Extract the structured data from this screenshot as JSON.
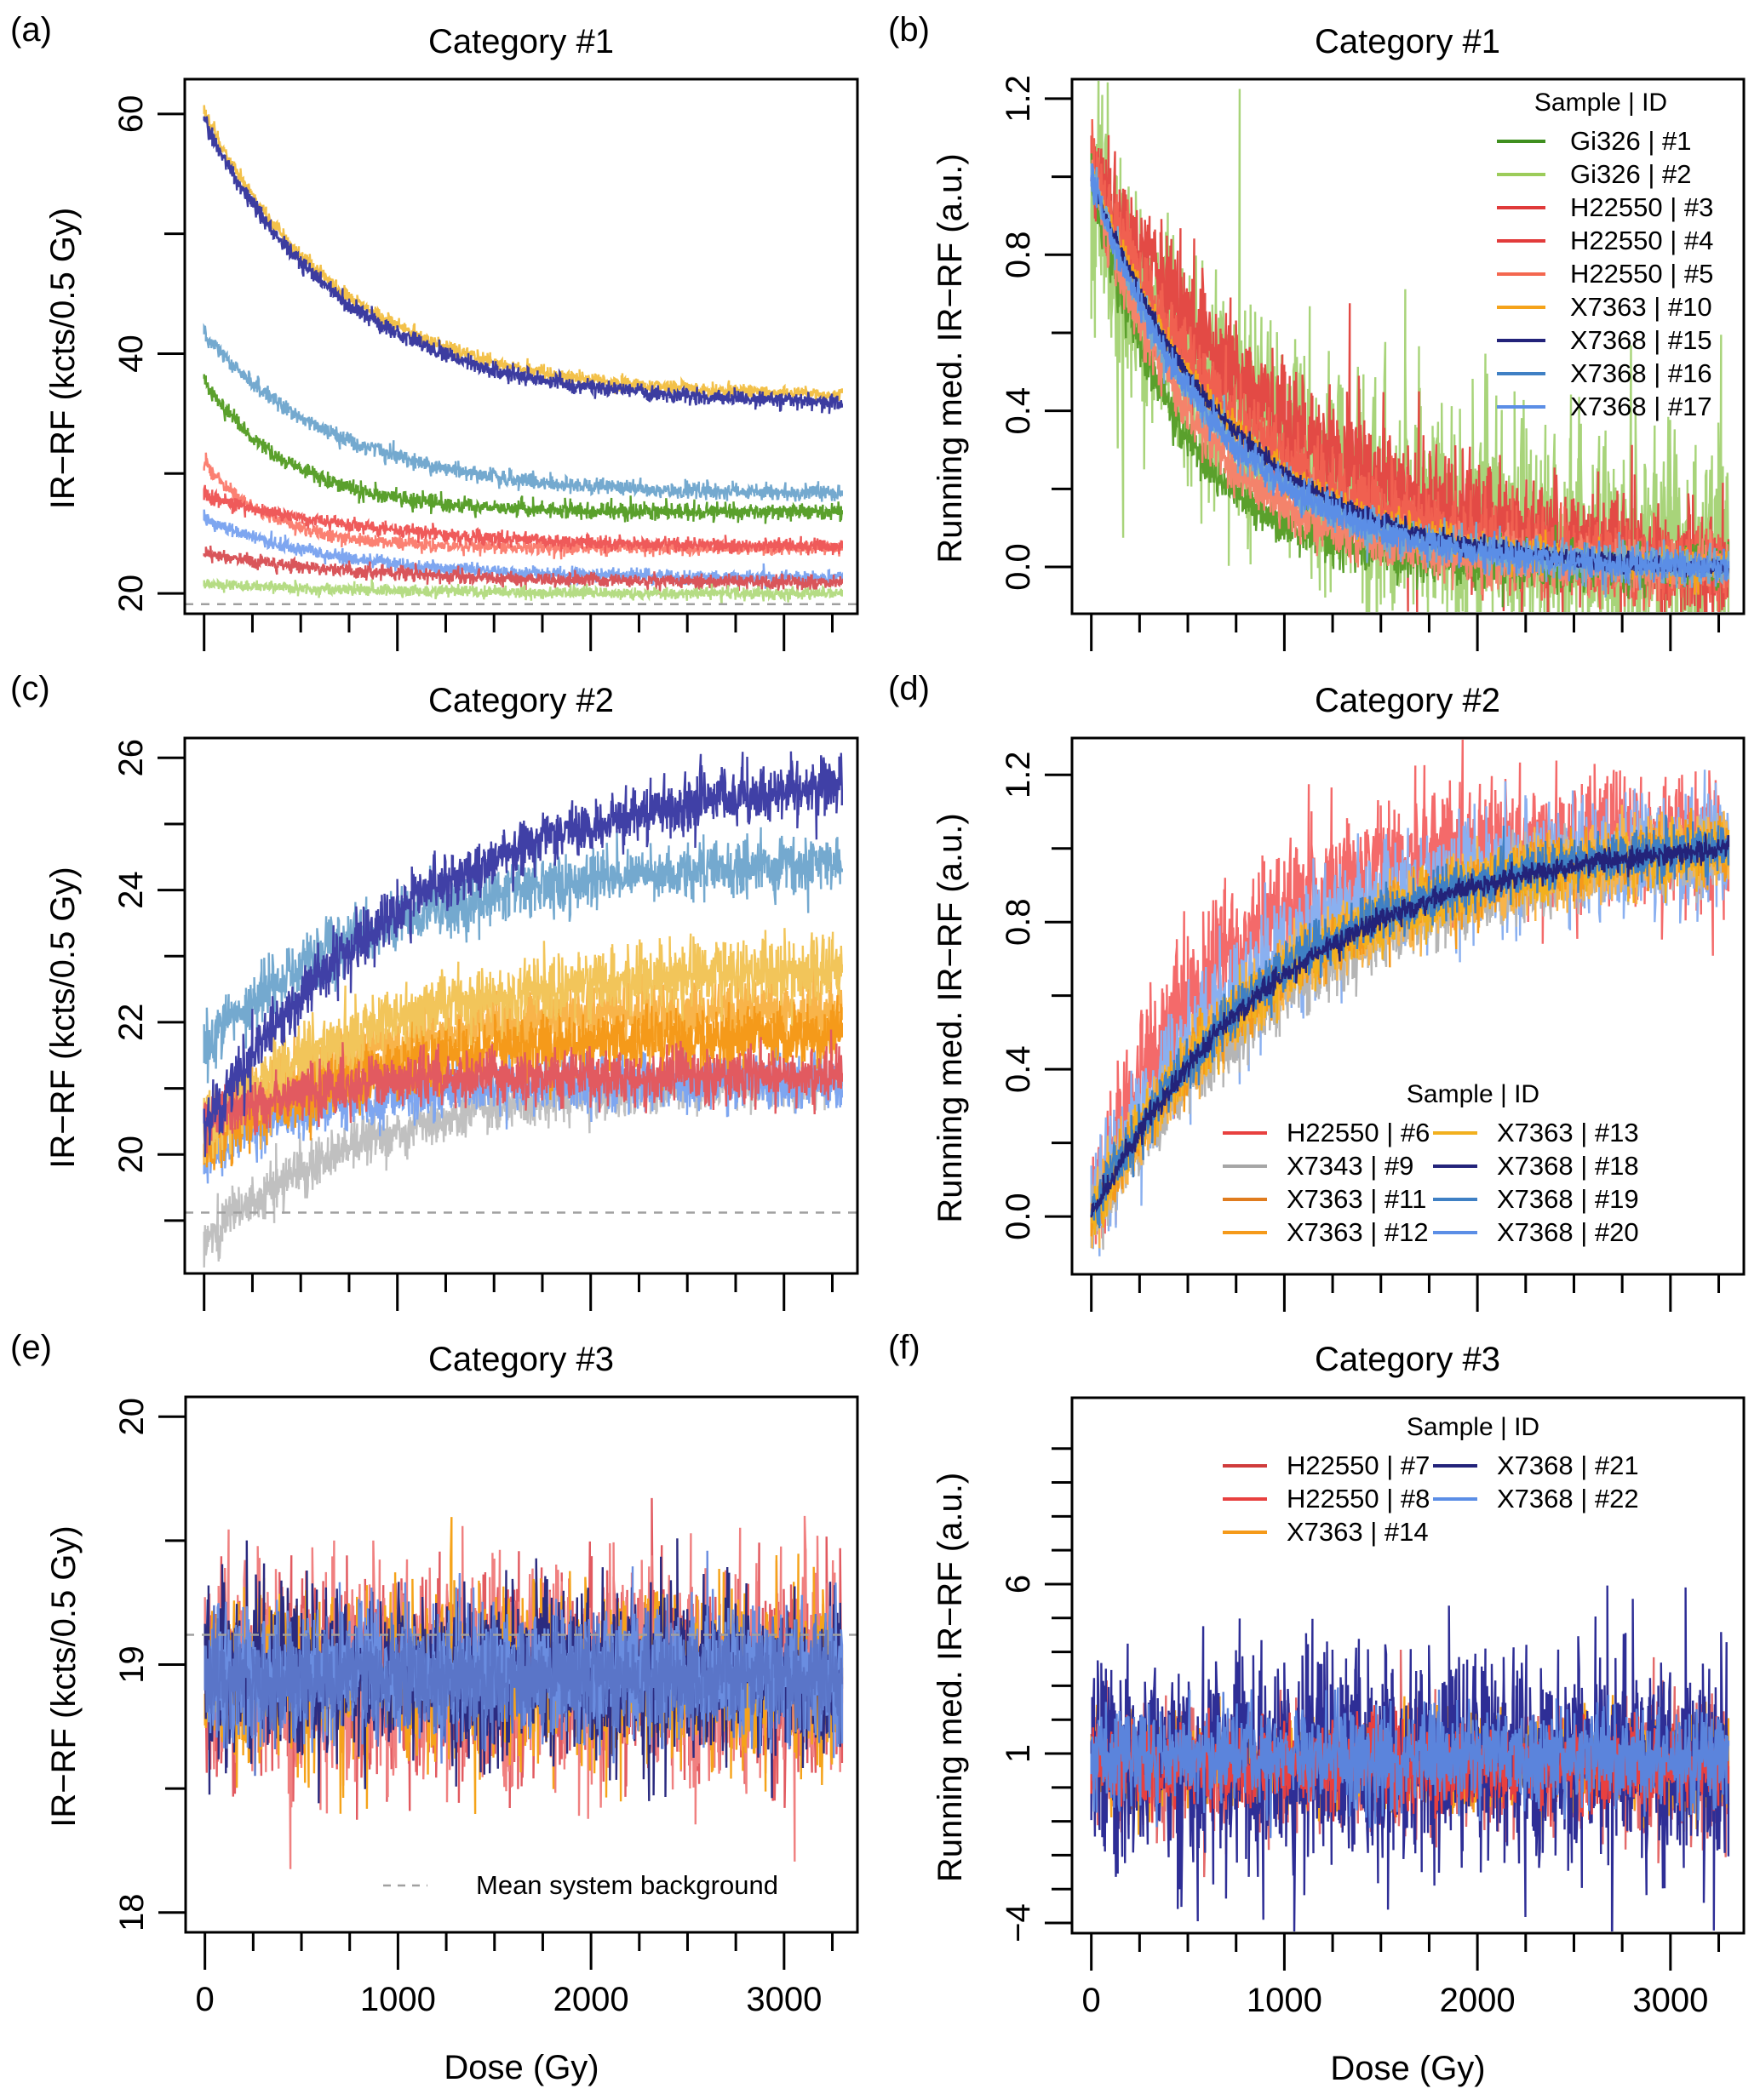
{
  "figure": {
    "panels": [
      "a",
      "b",
      "c",
      "d",
      "e",
      "f"
    ]
  },
  "chart_data": [
    {
      "id": "a",
      "panel_label": "(a)",
      "type": "line",
      "title": "Category #1",
      "xlabel": "",
      "ylabel": "IR−RF (kcts/0.5 Gy)",
      "xlim": [
        -100,
        3380
      ],
      "ylim": [
        18.3,
        62.9
      ],
      "xticks": [
        0,
        1000,
        2000,
        3000
      ],
      "xtick_labels": [
        "",
        "",
        "",
        ""
      ],
      "x_minor_step": 250,
      "yticks": [
        20,
        40,
        60
      ],
      "ytick_labels": [
        "20",
        "40",
        "60"
      ],
      "y_minor_step": 10,
      "background_level": 19.1,
      "grid": false,
      "legend": null,
      "series": [
        {
          "id": "#16",
          "color": "#74a9cf",
          "x_range": [
            0,
            3300
          ],
          "start": 41.6,
          "end": 28.3,
          "tau": 700,
          "noise": 0.35
        },
        {
          "id": "#1",
          "color": "#5aa02c",
          "x_range": [
            0,
            3300
          ],
          "start": 37.6,
          "end": 26.8,
          "tau": 450,
          "noise": 0.35
        },
        {
          "id": "#5",
          "color": "#fb8072",
          "x_range": [
            0,
            3300
          ],
          "start": 30.9,
          "end": 23.8,
          "tau": 350,
          "noise": 0.3
        },
        {
          "id": "#3",
          "color": "#ef5a5a",
          "x_range": [
            0,
            3300
          ],
          "start": 28.2,
          "end": 23.9,
          "tau": 900,
          "noise": 0.3
        },
        {
          "id": "#17",
          "color": "#7ea6f0",
          "x_range": [
            0,
            3300
          ],
          "start": 26.2,
          "end": 21.3,
          "tau": 700,
          "noise": 0.3
        },
        {
          "id": "#4",
          "color": "#d9555a",
          "x_range": [
            0,
            3300
          ],
          "start": 23.3,
          "end": 20.9,
          "tau": 900,
          "noise": 0.3
        },
        {
          "id": "#2",
          "color": "#b5dc84",
          "x_range": [
            0,
            3300
          ],
          "start": 20.8,
          "end": 20.0,
          "tau": 800,
          "noise": 0.25
        },
        {
          "id": "#10",
          "color": "#f3c14a",
          "x_range": [
            0,
            3300
          ],
          "start": 60.2,
          "end": 36.6,
          "tau": 720,
          "noise": 0.3
        },
        {
          "id": "#15",
          "color": "#3c3ca0",
          "x_range": [
            0,
            3300
          ],
          "start": 59.5,
          "end": 36.0,
          "tau": 720,
          "noise": 0.35
        }
      ]
    },
    {
      "id": "b",
      "panel_label": "(b)",
      "type": "line",
      "title": "Category #1",
      "xlabel": "",
      "ylabel": "Running med. IR−RF (a.u.)",
      "xlim": [
        -100,
        3380
      ],
      "ylim": [
        -0.12,
        1.25
      ],
      "xticks": [
        0,
        1000,
        2000,
        3000
      ],
      "xtick_labels": [
        "",
        "",
        "",
        ""
      ],
      "x_minor_step": 250,
      "yticks": [
        0.0,
        0.4,
        0.8,
        1.2
      ],
      "ytick_labels": [
        "0.0",
        "0.4",
        "0.8",
        "1.2"
      ],
      "y_minor_step": 0.2,
      "background_level": null,
      "grid": false,
      "legend": {
        "title": "Sample | ID",
        "position": "top-right",
        "columns": 1,
        "entries": [
          {
            "label": "Gi326 | #1",
            "color": "#3f8f1f"
          },
          {
            "label": "Gi326 | #2",
            "color": "#9ccc5a"
          },
          {
            "label": "H22550 | #3",
            "color": "#e03a3a"
          },
          {
            "label": "H22550 | #4",
            "color": "#e23b3b"
          },
          {
            "label": "H22550 | #5",
            "color": "#f4674f"
          },
          {
            "label": "X7363 | #10",
            "color": "#f5a31a"
          },
          {
            "label": "X7368 | #15",
            "color": "#23237a"
          },
          {
            "label": "X7368 | #16",
            "color": "#3f80c4"
          },
          {
            "label": "X7368 | #17",
            "color": "#5b8ee6"
          }
        ]
      },
      "series": [
        {
          "id": "#2",
          "color": "#a8d47a",
          "x_range": [
            0,
            3300
          ],
          "start": 0.95,
          "end": 0.02,
          "tau": 900,
          "noise": 0.14,
          "spiky": true
        },
        {
          "id": "#4",
          "color": "#e34a45",
          "x_range": [
            0,
            3300
          ],
          "start": 1.03,
          "end": 0.0,
          "tau": 1100,
          "noise": 0.07,
          "spiky": true
        },
        {
          "id": "#3",
          "color": "#f06050",
          "x_range": [
            0,
            3300
          ],
          "start": 1.02,
          "end": 0.0,
          "tau": 800,
          "noise": 0.05
        },
        {
          "id": "#1",
          "color": "#5aa02c",
          "x_range": [
            0,
            3300
          ],
          "start": 1.0,
          "end": 0.0,
          "tau": 450,
          "noise": 0.03
        },
        {
          "id": "#5",
          "color": "#f4836b",
          "x_range": [
            0,
            3300
          ],
          "start": 1.0,
          "end": 0.0,
          "tau": 550,
          "noise": 0.035
        },
        {
          "id": "#10",
          "color": "#f5a31a",
          "x_range": [
            0,
            3300
          ],
          "start": 1.0,
          "end": 0.0,
          "tau": 720,
          "noise": 0.02
        },
        {
          "id": "#16",
          "color": "#74a9cf",
          "x_range": [
            0,
            3300
          ],
          "start": 1.0,
          "end": 0.0,
          "tau": 650,
          "noise": 0.025
        },
        {
          "id": "#15",
          "color": "#23237a",
          "x_range": [
            0,
            3300
          ],
          "start": 1.0,
          "end": 0.0,
          "tau": 720,
          "noise": 0.012
        },
        {
          "id": "#17",
          "color": "#5b8ee6",
          "x_range": [
            0,
            3300
          ],
          "start": 1.0,
          "end": 0.0,
          "tau": 650,
          "noise": 0.02
        }
      ]
    },
    {
      "id": "c",
      "panel_label": "(c)",
      "type": "line",
      "title": "Category #2",
      "xlabel": "",
      "ylabel": "IR−RF (kcts/0.5 Gy)",
      "xlim": [
        -100,
        3380
      ],
      "ylim": [
        18.2,
        26.3
      ],
      "xticks": [
        0,
        1000,
        2000,
        3000
      ],
      "xtick_labels": [
        "",
        "",
        "",
        ""
      ],
      "x_minor_step": 250,
      "yticks": [
        20,
        22,
        24,
        26
      ],
      "ytick_labels": [
        "20",
        "22",
        "24",
        "26"
      ],
      "y_minor_step": 1,
      "background_level": 19.12,
      "grid": false,
      "legend": null,
      "series": [
        {
          "id": "#9",
          "color": "#c0c0c0",
          "x_range": [
            0,
            3300
          ],
          "start": 18.7,
          "end": 21.1,
          "tau": 900,
          "noise": 0.18
        },
        {
          "id": "#20",
          "color": "#7ea6f0",
          "x_range": [
            0,
            3300
          ],
          "start": 20.0,
          "end": 21.1,
          "tau": 600,
          "noise": 0.2
        },
        {
          "id": "#12",
          "color": "#f8b44a",
          "x_range": [
            0,
            3300
          ],
          "start": 20.3,
          "end": 22.2,
          "tau": 800,
          "noise": 0.25
        },
        {
          "id": "#11",
          "color": "#f59a1a",
          "x_range": [
            0,
            3300
          ],
          "start": 20.1,
          "end": 21.8,
          "tau": 800,
          "noise": 0.25
        },
        {
          "id": "#13",
          "color": "#f2c55a",
          "x_range": [
            0,
            3300
          ],
          "start": 20.4,
          "end": 22.8,
          "tau": 900,
          "noise": 0.25
        },
        {
          "id": "#6",
          "color": "#e25a60",
          "x_range": [
            0,
            3300
          ],
          "start": 20.5,
          "end": 21.2,
          "tau": 500,
          "noise": 0.2
        },
        {
          "id": "#19",
          "color": "#74a9cf",
          "x_range": [
            0,
            3300
          ],
          "start": 21.6,
          "end": 24.4,
          "tau": 900,
          "noise": 0.22
        },
        {
          "id": "#18",
          "color": "#4040a6",
          "x_range": [
            0,
            3300
          ],
          "start": 20.4,
          "end": 25.6,
          "tau": 1100,
          "noise": 0.22
        }
      ]
    },
    {
      "id": "d",
      "panel_label": "(d)",
      "type": "line",
      "title": "Category #2",
      "xlabel": "",
      "ylabel": "Running med. IR−RF (a.u.)",
      "xlim": [
        -100,
        3380
      ],
      "ylim": [
        -0.157,
        1.3
      ],
      "xticks": [
        0,
        1000,
        2000,
        3000
      ],
      "xtick_labels": [
        "",
        "",
        "",
        ""
      ],
      "x_minor_step": 250,
      "yticks": [
        0.0,
        0.4,
        0.8,
        1.2
      ],
      "ytick_labels": [
        "0.0",
        "0.4",
        "0.8",
        "1.2"
      ],
      "y_minor_step": 0.2,
      "background_level": null,
      "grid": false,
      "legend": {
        "title": "Sample | ID",
        "position": "bottom-right",
        "columns": 2,
        "entries": [
          {
            "label": "H22550 | #6",
            "color": "#e8403f"
          },
          {
            "label": "X7343 | #9",
            "color": "#a6a6a6"
          },
          {
            "label": "X7363 | #11",
            "color": "#e07c1e"
          },
          {
            "label": "X7363 | #12",
            "color": "#f59a1a"
          },
          {
            "label": "X7363 | #13",
            "color": "#f2b01e"
          },
          {
            "label": "X7368 | #18",
            "color": "#23237a"
          },
          {
            "label": "X7368 | #19",
            "color": "#3f80c4"
          },
          {
            "label": "X7368 | #20",
            "color": "#5b8ee6"
          }
        ]
      },
      "series": [
        {
          "id": "#6",
          "color": "#f46a6a",
          "x_range": [
            0,
            3300
          ],
          "start": 0.0,
          "end": 1.02,
          "tau": 600,
          "noise": 0.09,
          "grow": true
        },
        {
          "id": "#20",
          "color": "#8ab0f0",
          "x_range": [
            0,
            3300
          ],
          "start": 0.0,
          "end": 1.0,
          "tau": 800,
          "noise": 0.08,
          "grow": true
        },
        {
          "id": "#9",
          "color": "#b5b5b5",
          "x_range": [
            0,
            3300
          ],
          "start": 0.0,
          "end": 1.0,
          "tau": 1200,
          "noise": 0.05,
          "grow": true
        },
        {
          "id": "#12",
          "color": "#f8b44a",
          "x_range": [
            0,
            3300
          ],
          "start": 0.0,
          "end": 1.0,
          "tau": 1000,
          "noise": 0.05,
          "grow": true
        },
        {
          "id": "#11",
          "color": "#f59a1a",
          "x_range": [
            0,
            3300
          ],
          "start": 0.0,
          "end": 1.0,
          "tau": 1000,
          "noise": 0.04,
          "grow": true
        },
        {
          "id": "#13",
          "color": "#f2b01e",
          "x_range": [
            0,
            3300
          ],
          "start": 0.0,
          "end": 1.0,
          "tau": 1000,
          "noise": 0.04,
          "grow": true
        },
        {
          "id": "#19",
          "color": "#3f80c4",
          "x_range": [
            0,
            3300
          ],
          "start": 0.0,
          "end": 1.0,
          "tau": 950,
          "noise": 0.035,
          "grow": true
        },
        {
          "id": "#18",
          "color": "#23237a",
          "x_range": [
            0,
            3300
          ],
          "start": 0.0,
          "end": 1.0,
          "tau": 1000,
          "noise": 0.015,
          "grow": true
        }
      ]
    },
    {
      "id": "e",
      "panel_label": "(e)",
      "type": "line",
      "title": "Category #3",
      "xlabel": "Dose (Gy)",
      "ylabel": "IR−RF (kcts/0.5 Gy)",
      "xlim": [
        -100,
        3380
      ],
      "ylim": [
        17.92,
        20.08
      ],
      "xticks": [
        0,
        1000,
        2000,
        3000
      ],
      "xtick_labels": [
        "0",
        "1000",
        "2000",
        "3000"
      ],
      "x_minor_step": 250,
      "yticks": [
        18,
        19,
        20
      ],
      "ytick_labels": [
        "18",
        "19",
        "20"
      ],
      "y_minor_step": 0.5,
      "background_level": 19.12,
      "grid": false,
      "legend": {
        "title": "",
        "position": "bottom-right",
        "columns": 1,
        "entries": [
          {
            "label": "Mean system background",
            "color": "#a0a0a0",
            "dashed": true
          }
        ]
      },
      "series": [
        {
          "id": "#7",
          "color": "#e25a60",
          "x_range": [
            0,
            3300
          ],
          "start": 18.95,
          "end": 18.95,
          "tau": 1000,
          "noise": 0.2
        },
        {
          "id": "#8",
          "color": "#f08080",
          "x_range": [
            0,
            3300
          ],
          "start": 18.95,
          "end": 18.95,
          "tau": 1000,
          "noise": 0.2
        },
        {
          "id": "#14",
          "color": "#f5a31a",
          "x_range": [
            0,
            3300
          ],
          "start": 18.95,
          "end": 18.95,
          "tau": 1000,
          "noise": 0.17
        },
        {
          "id": "#21",
          "color": "#2b2b80",
          "x_range": [
            0,
            3300
          ],
          "start": 18.95,
          "end": 18.95,
          "tau": 1000,
          "noise": 0.17
        },
        {
          "id": "#22",
          "color": "#6a8de0",
          "x_range": [
            0,
            3300
          ],
          "start": 18.97,
          "end": 18.97,
          "tau": 1000,
          "noise": 0.13
        },
        {
          "id": "band",
          "color": "#5a75c8",
          "x_range": [
            0,
            3300
          ],
          "start": 18.95,
          "end": 18.95,
          "tau": 1000,
          "noise": 0.11
        }
      ]
    },
    {
      "id": "f",
      "panel_label": "(f)",
      "type": "line",
      "title": "Category #3",
      "xlabel": "Dose (Gy)",
      "ylabel": "Running med. IR−RF (a.u.)",
      "xlim": [
        -100,
        3380
      ],
      "ylim": [
        -4.3,
        11.5
      ],
      "xticks": [
        0,
        1000,
        2000,
        3000
      ],
      "xtick_labels": [
        "0",
        "1000",
        "2000",
        "3000"
      ],
      "x_minor_step": 250,
      "yticks": [
        -4,
        1,
        6
      ],
      "ytick_labels": [
        "−4",
        "1",
        "6"
      ],
      "y_minor_step": 1,
      "y_minor_range": [
        -4,
        10
      ],
      "background_level": null,
      "grid": false,
      "legend": {
        "title": "Sample | ID",
        "position": "top-right",
        "columns": 2,
        "entries": [
          {
            "label": "H22550 | #7",
            "color": "#d03c3c"
          },
          {
            "label": "H22550 | #8",
            "color": "#e8403f"
          },
          {
            "label": "X7363 | #14",
            "color": "#f59a1a"
          },
          {
            "label": "X7368 | #21",
            "color": "#23237a"
          },
          {
            "label": "X7368 | #22",
            "color": "#5b8ee6"
          }
        ]
      },
      "series": [
        {
          "id": "#7",
          "color": "#e46a6a",
          "x_range": [
            0,
            3300
          ],
          "start": 0.6,
          "end": 0.6,
          "tau": 1000,
          "noise": 0.9
        },
        {
          "id": "#14",
          "color": "#f5a31a",
          "x_range": [
            0,
            3300
          ],
          "start": 0.7,
          "end": 0.7,
          "tau": 1000,
          "noise": 0.7
        },
        {
          "id": "#21",
          "color": "#2e2e96",
          "x_range": [
            0,
            3300
          ],
          "start": 0.8,
          "end": 0.8,
          "tau": 1000,
          "noise": 1.6
        },
        {
          "id": "#8",
          "color": "#e8403f",
          "x_range": [
            0,
            3300
          ],
          "start": 0.6,
          "end": 0.6,
          "tau": 1000,
          "noise": 0.6
        },
        {
          "id": "#22",
          "color": "#5b84dc",
          "x_range": [
            0,
            3300
          ],
          "start": 0.9,
          "end": 0.9,
          "tau": 1000,
          "noise": 0.7
        }
      ]
    }
  ]
}
